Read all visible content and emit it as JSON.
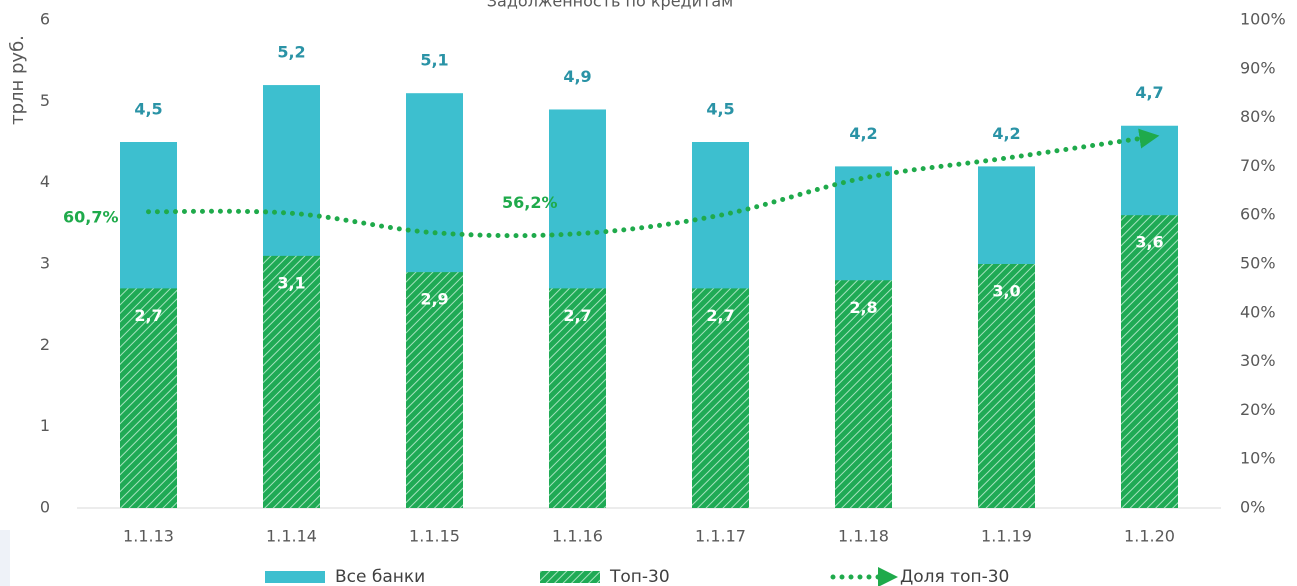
{
  "chart_data": {
    "type": "bar",
    "title": "Задолженность по кредитам",
    "y_label": "трлн  руб.",
    "categories": [
      "1.1.13",
      "1.1.14",
      "1.1.15",
      "1.1.16",
      "1.1.17",
      "1.1.18",
      "1.1.19",
      "1.1.20"
    ],
    "series": [
      {
        "name": "Все банки",
        "type": "bar",
        "color": "#3dbfcf",
        "label_color": "#2a93a6",
        "values": [
          4.5,
          5.2,
          5.1,
          4.9,
          4.5,
          4.2,
          4.2,
          4.7
        ],
        "value_labels": [
          "4,5",
          "5,2",
          "5,1",
          "4,9",
          "4,5",
          "4,2",
          "4,2",
          "4,7"
        ]
      },
      {
        "name": "Топ-30",
        "type": "bar",
        "color": "#1faa55",
        "pattern": "hatch",
        "label_color": "#ffffff",
        "values": [
          2.7,
          3.1,
          2.9,
          2.7,
          2.7,
          2.8,
          3.0,
          3.6
        ],
        "value_labels": [
          "2,7",
          "3,1",
          "2,9",
          "2,7",
          "2,7",
          "2,8",
          "3,0",
          "3,6"
        ]
      },
      {
        "name": "Доля топ-30",
        "type": "line",
        "axis": "y2",
        "color": "#1faa4b",
        "label_color": "#1faa4b",
        "values": [
          60.7,
          60.4,
          56.4,
          56.2,
          60.0,
          67.6,
          71.7,
          76.0
        ],
        "value_labels": [
          "60,7%",
          null,
          null,
          "56,2%",
          null,
          null,
          null,
          null
        ]
      }
    ],
    "ylim": [
      0,
      6
    ],
    "yticks": [
      0,
      1,
      2,
      3,
      4,
      5,
      6
    ],
    "y2lim": [
      0,
      100
    ],
    "y2ticks": [
      {
        "value": 0,
        "label": "0%"
      },
      {
        "value": 10,
        "label": "10%"
      },
      {
        "value": 20,
        "label": "20%"
      },
      {
        "value": 30,
        "label": "30%"
      },
      {
        "value": 40,
        "label": "40%"
      },
      {
        "value": 50,
        "label": "50%"
      },
      {
        "value": 60,
        "label": "60%"
      },
      {
        "value": 70,
        "label": "70%"
      },
      {
        "value": 80,
        "label": "80%"
      },
      {
        "value": 90,
        "label": "90%"
      },
      {
        "value": 100,
        "label": "100%"
      }
    ],
    "grid": false,
    "legend": "bottom"
  }
}
